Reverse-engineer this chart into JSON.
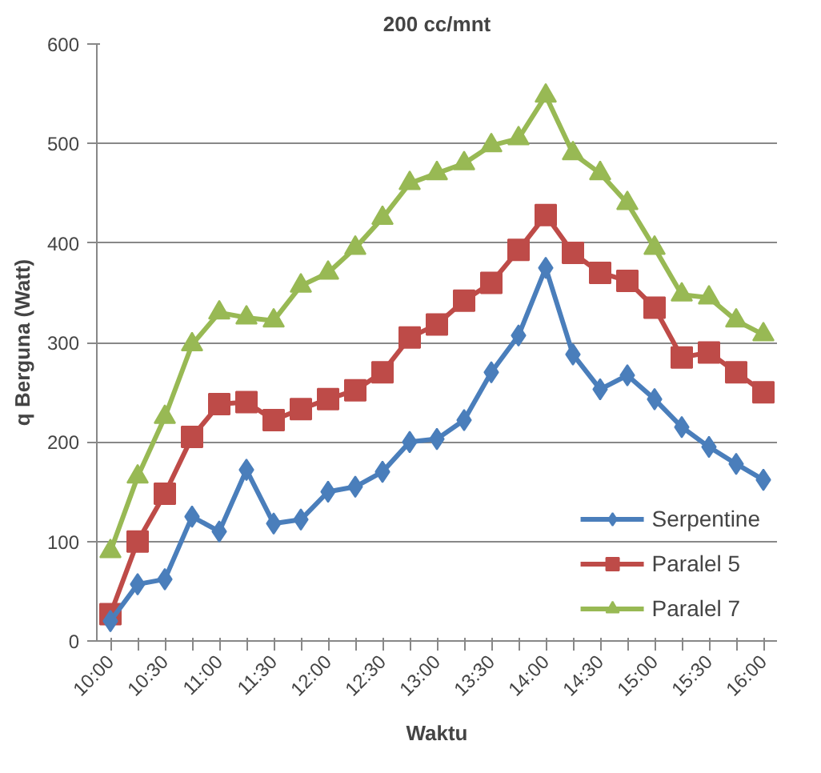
{
  "chart_data": {
    "type": "line",
    "title": "200 cc/mnt",
    "xlabel": "Waktu",
    "ylabel": "q Berguna (Watt)",
    "categories": [
      "10:00",
      null,
      "10:30",
      null,
      "11:00",
      null,
      "11:30",
      null,
      "12:00",
      null,
      "12:30",
      null,
      "13:00",
      null,
      "13:30",
      null,
      "14:00",
      null,
      "14:30",
      null,
      "15:00",
      null,
      "15:30",
      null,
      "16:00"
    ],
    "ylim": [
      0,
      600
    ],
    "yticks": [
      0,
      100,
      200,
      300,
      400,
      500,
      600
    ],
    "grid": "y",
    "legend": "bottom right",
    "series": [
      {
        "name": "Serpentine",
        "color": "#4a7ebb",
        "marker": "diamond",
        "values": [
          20,
          57,
          62,
          125,
          110,
          172,
          118,
          122,
          150,
          155,
          170,
          200,
          203,
          222,
          270,
          307,
          375,
          288,
          253,
          267,
          243,
          215,
          195,
          178,
          162
        ]
      },
      {
        "name": "Paralel 5",
        "color": "#be4b48",
        "marker": "square",
        "values": [
          27,
          100,
          148,
          205,
          238,
          240,
          222,
          233,
          243,
          252,
          270,
          305,
          318,
          342,
          360,
          393,
          428,
          390,
          370,
          362,
          335,
          285,
          290,
          270,
          250
        ]
      },
      {
        "name": "Paralel 7",
        "color": "#98b954",
        "marker": "triangle",
        "values": [
          90,
          165,
          225,
          298,
          330,
          325,
          322,
          357,
          370,
          395,
          425,
          460,
          470,
          480,
          498,
          505,
          548,
          490,
          470,
          440,
          395,
          348,
          345,
          322,
          308
        ]
      }
    ]
  }
}
